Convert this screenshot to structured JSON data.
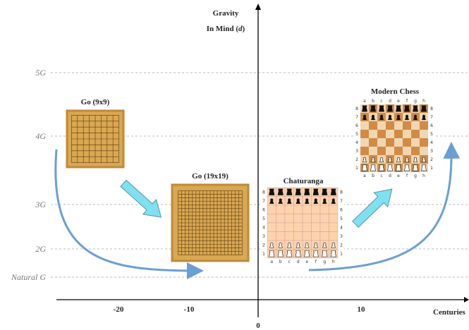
{
  "axis": {
    "y_title_line1": "Gravity",
    "y_title_line2": "In Mind (",
    "y_title_var": "d",
    "y_title_close": ")",
    "x_title": "Centuries",
    "y_levels": [
      "5G",
      "4G",
      "3G",
      "2G",
      "Natural G"
    ],
    "x_ticks": [
      "-20",
      "-10",
      "0",
      "10"
    ]
  },
  "go_boards": [
    {
      "title": "Go (9x9)"
    },
    {
      "title": "Go (19x19)"
    }
  ],
  "chess_boards": [
    {
      "title": "Chaturanga",
      "files": [
        "a",
        "b",
        "c",
        "d",
        "e",
        "f",
        "g",
        "h"
      ],
      "ranks": [
        "8",
        "7",
        "6",
        "5",
        "4",
        "3",
        "2",
        "1"
      ]
    },
    {
      "title": "Modern Chess",
      "files": [
        "a",
        "b",
        "c",
        "d",
        "e",
        "f",
        "g",
        "h"
      ],
      "ranks": [
        "8",
        "7",
        "6",
        "5",
        "4",
        "3",
        "2",
        "1"
      ]
    }
  ]
}
